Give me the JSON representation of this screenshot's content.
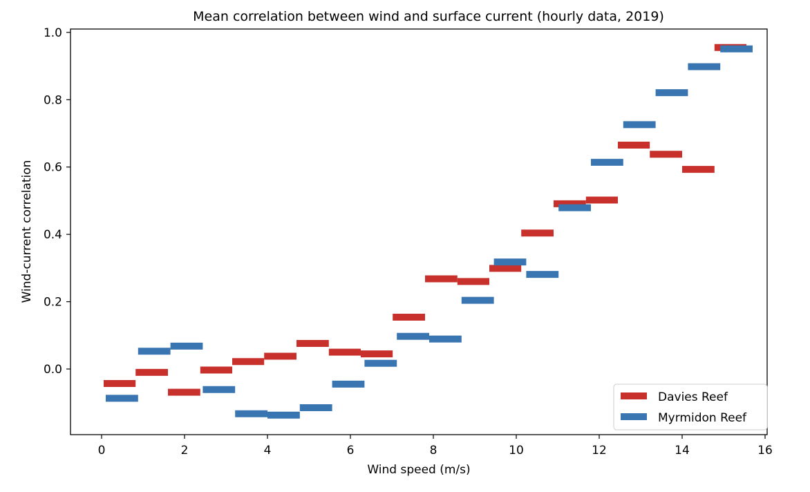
{
  "chart_data": {
    "type": "line",
    "title": "Mean correlation between wind and surface current (hourly data, 2019)",
    "xlabel": "Wind speed (m/s)",
    "ylabel": "Wind-current correlation",
    "xlim": [
      -0.75,
      16.05
    ],
    "ylim": [
      -0.195,
      1.01
    ],
    "xticks": [
      0,
      2,
      4,
      6,
      8,
      10,
      12,
      14,
      16
    ],
    "xtick_labels": [
      "0",
      "2",
      "4",
      "6",
      "8",
      "10",
      "12",
      "14",
      "16"
    ],
    "yticks": [
      0.0,
      0.2,
      0.4,
      0.6,
      0.8,
      1.0
    ],
    "ytick_labels": [
      "0.0",
      "0.2",
      "0.4",
      "0.6",
      "0.8",
      "1.0"
    ],
    "grid": false,
    "legend_position": "lower-right",
    "series": [
      {
        "name": "Davies Reef",
        "color": "#c8312b",
        "x_start": [
          0.05,
          0.82,
          1.6,
          2.38,
          3.15,
          3.92,
          4.7,
          5.48,
          6.25,
          7.02,
          7.8,
          8.58,
          9.35,
          10.12,
          10.9,
          11.68,
          12.45,
          13.22,
          14.0,
          14.78
        ],
        "x_end": [
          0.82,
          1.6,
          2.38,
          3.15,
          3.92,
          4.7,
          5.48,
          6.25,
          7.02,
          7.8,
          8.58,
          9.35,
          10.12,
          10.9,
          11.68,
          12.45,
          13.22,
          14.0,
          14.78,
          15.55
        ],
        "values": [
          -0.043,
          -0.01,
          -0.069,
          -0.003,
          0.022,
          0.038,
          0.076,
          0.05,
          0.045,
          0.154,
          0.268,
          0.26,
          0.299,
          0.404,
          0.491,
          0.502,
          0.665,
          0.638,
          0.593,
          0.955
        ]
      },
      {
        "name": "Myrmidon Reef",
        "color": "#3875b1",
        "x_start": [
          0.1,
          0.88,
          1.66,
          2.44,
          3.22,
          4.0,
          4.78,
          5.56,
          6.34,
          7.12,
          7.9,
          8.68,
          9.46,
          10.24,
          11.02,
          11.8,
          12.58,
          13.36,
          14.14,
          14.92
        ],
        "x_end": [
          0.88,
          1.66,
          2.44,
          3.22,
          4.0,
          4.78,
          5.56,
          6.34,
          7.12,
          7.9,
          8.68,
          9.46,
          10.24,
          11.02,
          11.8,
          12.58,
          13.36,
          14.14,
          14.92,
          15.7
        ],
        "values": [
          -0.087,
          0.053,
          0.068,
          -0.061,
          -0.133,
          -0.137,
          -0.115,
          -0.045,
          0.017,
          0.097,
          0.089,
          0.204,
          0.318,
          0.281,
          0.479,
          0.614,
          0.726,
          0.821,
          0.898,
          0.951
        ]
      }
    ]
  }
}
